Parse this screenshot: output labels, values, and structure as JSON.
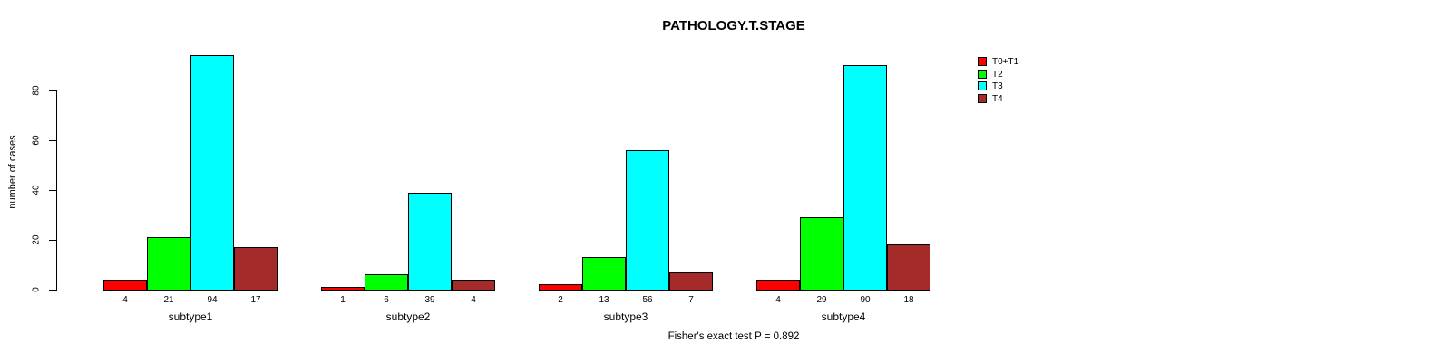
{
  "figure": {
    "background": "#ffffff",
    "text_color": "#000000"
  },
  "chart_data": {
    "type": "bar",
    "title": "PATHOLOGY.T.STAGE",
    "xlabel": "",
    "ylabel": "number of cases",
    "categories": [
      "subtype1",
      "subtype2",
      "subtype3",
      "subtype4"
    ],
    "series": [
      {
        "name": "T0+T1",
        "color": "#ff0000",
        "values": [
          4,
          1,
          2,
          4
        ]
      },
      {
        "name": "T2",
        "color": "#00ff00",
        "values": [
          21,
          6,
          13,
          29
        ]
      },
      {
        "name": "T3",
        "color": "#00ffff",
        "values": [
          94,
          39,
          56,
          90
        ]
      },
      {
        "name": "T4",
        "color": "#a52a2a",
        "values": [
          17,
          4,
          7,
          18
        ]
      }
    ],
    "yticks": [
      0,
      20,
      40,
      60,
      80
    ],
    "ylim": [
      0,
      95
    ],
    "grid": false,
    "bar_value_labels_shown": true,
    "legend_position": "top-right",
    "annotation": "Fisher's exact test P = 0.892"
  }
}
